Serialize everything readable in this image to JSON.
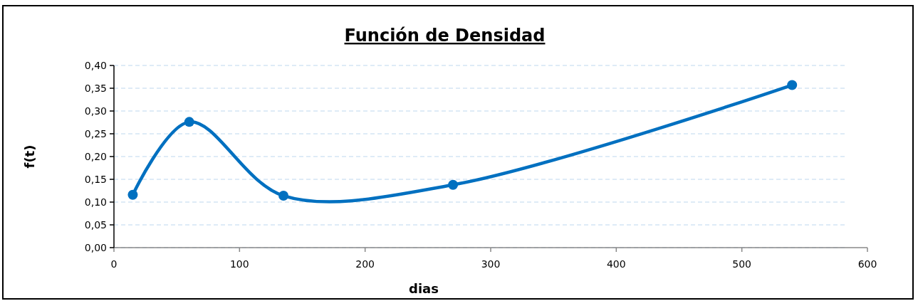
{
  "chart_data": {
    "type": "line",
    "title": "Función de Densidad",
    "xlabel": "dias",
    "ylabel": "f(t)",
    "x": [
      15,
      60,
      135,
      270,
      540
    ],
    "series": [
      {
        "color": "#0070c0",
        "values": [
          0.116,
          0.276,
          0.114,
          0.138,
          0.357
        ]
      }
    ],
    "xlim": [
      0,
      600
    ],
    "xticks": [
      0,
      100,
      200,
      300,
      400,
      500,
      600
    ],
    "ylim": [
      0,
      0.4
    ],
    "yticks": [
      {
        "value": 0,
        "label": "0,00"
      },
      {
        "value": 0.05,
        "label": "0,05"
      },
      {
        "value": 0.1,
        "label": "0,10"
      },
      {
        "value": 0.15,
        "label": "0,15"
      },
      {
        "value": 0.2,
        "label": "0,20"
      },
      {
        "value": 0.25,
        "label": "0,25"
      },
      {
        "value": 0.3,
        "label": "0,30"
      },
      {
        "value": 0.35,
        "label": "0,35"
      },
      {
        "value": 0.4,
        "label": "0,40"
      }
    ],
    "grid": "y",
    "marker": "circle",
    "line_style": "solid"
  }
}
